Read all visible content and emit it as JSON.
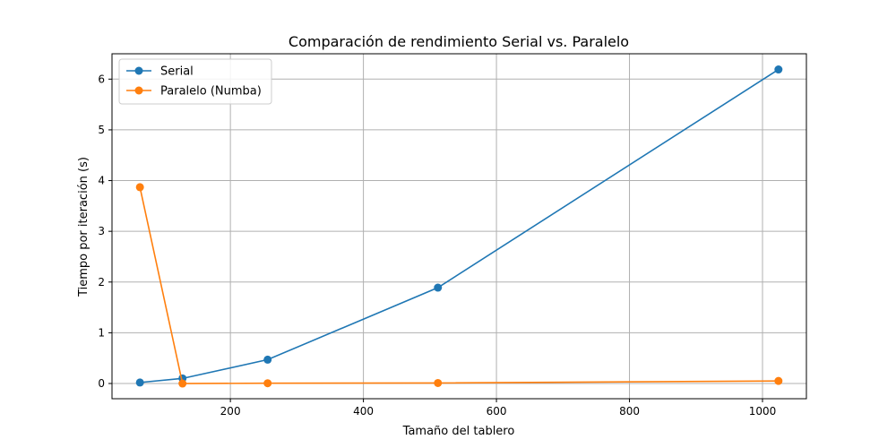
{
  "chart_data": {
    "type": "line",
    "title": "Comparación de rendimiento Serial vs. Paralelo",
    "xlabel": "Tamaño del tablero",
    "ylabel": "Tiempo por iteración (s)",
    "x": [
      64,
      128,
      256,
      512,
      1024
    ],
    "series": [
      {
        "name": "Serial",
        "color": "#1f77b4",
        "values": [
          0.02,
          0.1,
          0.47,
          1.89,
          6.19
        ]
      },
      {
        "name": "Paralelo (Numba)",
        "color": "#ff7f0e",
        "values": [
          3.87,
          0.0,
          0.005,
          0.01,
          0.05
        ]
      }
    ],
    "xlim": [
      22,
      1066
    ],
    "ylim": [
      -0.3,
      6.5
    ],
    "xticks": [
      200,
      400,
      600,
      800,
      1000
    ],
    "yticks": [
      0,
      1,
      2,
      3,
      4,
      5,
      6
    ],
    "grid": true,
    "legend_position": "top-left",
    "marker": "circle"
  }
}
